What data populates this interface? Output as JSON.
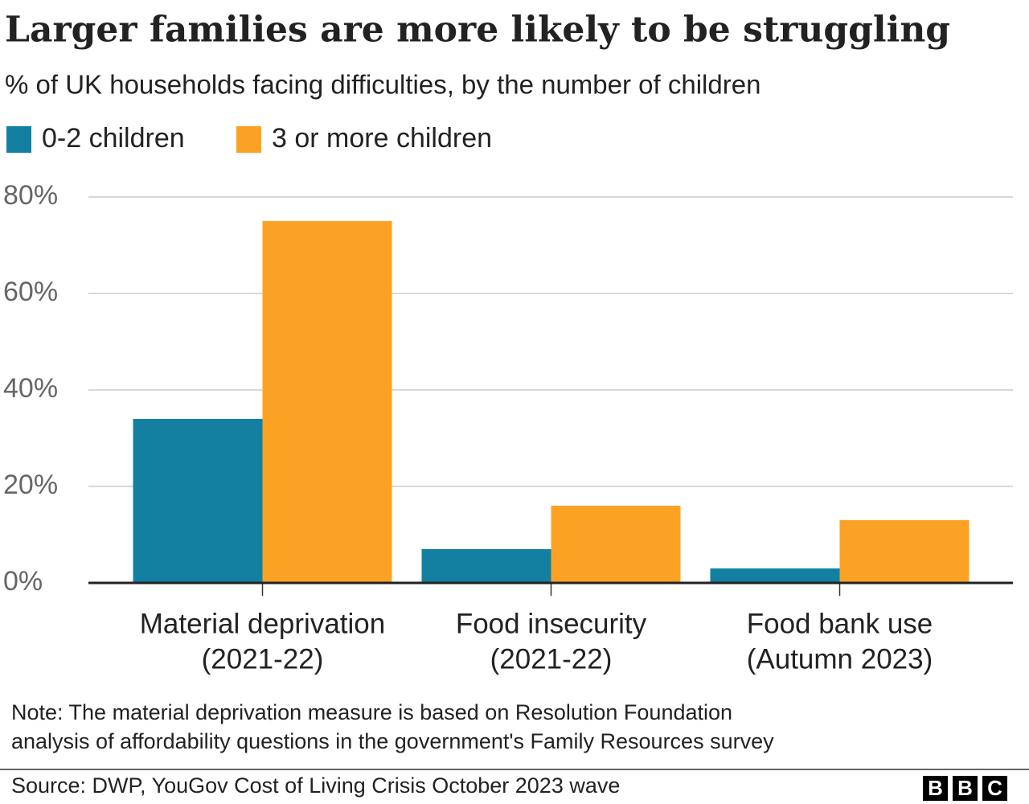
{
  "chart_data": {
    "type": "bar",
    "title": "Larger families are more likely to be struggling",
    "subtitle": "% of UK households facing difficulties, by the number of children",
    "categories": [
      [
        "Material deprivation",
        "(2021-22)"
      ],
      [
        "Food insecurity",
        "(2021-22)"
      ],
      [
        "Food bank use",
        "(Autumn 2023)"
      ]
    ],
    "series": [
      {
        "name": "0-2 children",
        "color": "#1380a1",
        "values": [
          34,
          7,
          3
        ]
      },
      {
        "name": "3 or more children",
        "color": "#fba224",
        "values": [
          75,
          16,
          13
        ]
      }
    ],
    "ylim": [
      0,
      80
    ],
    "yticks": [
      {
        "value": 0,
        "label": "0%"
      },
      {
        "value": 20,
        "label": "20%"
      },
      {
        "value": 40,
        "label": "40%"
      },
      {
        "value": 60,
        "label": "60%"
      },
      {
        "value": 80,
        "label": "80%"
      }
    ],
    "grid": true,
    "note": [
      "Note: The material deprivation measure is based on Resolution Foundation",
      "analysis of affordability questions in the government's Family Resources survey"
    ],
    "source": "Source: DWP, YouGov Cost of Living Crisis October 2023 wave",
    "logo": [
      "B",
      "B",
      "C"
    ]
  }
}
